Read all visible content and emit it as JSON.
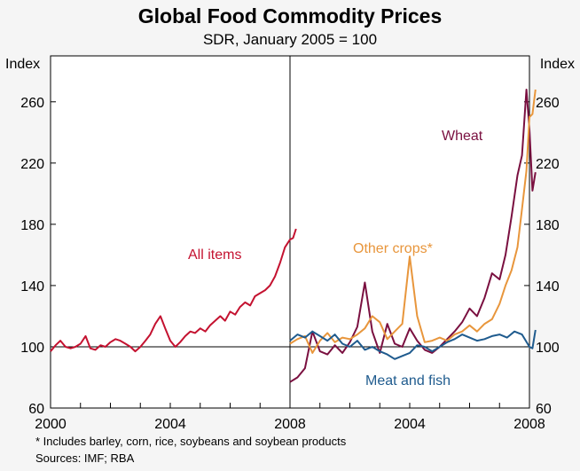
{
  "chart_data": {
    "type": "line",
    "title": "Global Food Commodity Prices",
    "subtitle": "SDR, January 2005 = 100",
    "ylabel_left": "Index",
    "ylabel_right": "Index",
    "ylim": [
      60,
      290
    ],
    "yticks": [
      60,
      100,
      140,
      180,
      220,
      260
    ],
    "reference_line": 100,
    "panels": [
      {
        "name": "left",
        "xlim": [
          2000,
          2008
        ],
        "xticks": [
          2000,
          2004,
          2008
        ],
        "series": [
          {
            "name": "All items",
            "color": "#c41230",
            "x": [
              2000.0,
              2000.17,
              2000.33,
              2000.5,
              2000.67,
              2000.83,
              2001.0,
              2001.17,
              2001.33,
              2001.5,
              2001.67,
              2001.83,
              2002.0,
              2002.17,
              2002.33,
              2002.5,
              2002.67,
              2002.83,
              2003.0,
              2003.17,
              2003.33,
              2003.5,
              2003.67,
              2003.83,
              2004.0,
              2004.17,
              2004.33,
              2004.5,
              2004.67,
              2004.83,
              2005.0,
              2005.17,
              2005.33,
              2005.5,
              2005.67,
              2005.83,
              2006.0,
              2006.17,
              2006.33,
              2006.5,
              2006.67,
              2006.83,
              2007.0,
              2007.17,
              2007.33,
              2007.5,
              2007.67,
              2007.83,
              2008.0,
              2008.1,
              2008.2
            ],
            "values": [
              97,
              101,
              104,
              100,
              99,
              100,
              102,
              107,
              99,
              98,
              101,
              100,
              103,
              105,
              104,
              102,
              100,
              97,
              100,
              104,
              108,
              115,
              120,
              112,
              104,
              100,
              103,
              107,
              110,
              109,
              112,
              110,
              114,
              117,
              120,
              117,
              123,
              121,
              126,
              129,
              127,
              133,
              135,
              137,
              140,
              146,
              155,
              165,
              170,
              171,
              177
            ]
          }
        ]
      },
      {
        "name": "right",
        "xlim": [
          2000,
          2008
        ],
        "xticks": [
          2004,
          2008
        ],
        "series": [
          {
            "name": "Wheat",
            "color": "#7a1040",
            "x": [
              2000.0,
              2000.25,
              2000.5,
              2000.75,
              2001.0,
              2001.25,
              2001.5,
              2001.75,
              2002.0,
              2002.25,
              2002.5,
              2002.75,
              2003.0,
              2003.25,
              2003.5,
              2003.75,
              2004.0,
              2004.25,
              2004.5,
              2004.75,
              2005.0,
              2005.25,
              2005.5,
              2005.75,
              2006.0,
              2006.25,
              2006.5,
              2006.75,
              2007.0,
              2007.2,
              2007.4,
              2007.6,
              2007.75,
              2007.9,
              2008.0,
              2008.1,
              2008.2
            ],
            "values": [
              77,
              80,
              86,
              110,
              97,
              95,
              101,
              96,
              103,
              113,
              142,
              110,
              96,
              115,
              102,
              100,
              112,
              104,
              98,
              96,
              100,
              105,
              110,
              116,
              125,
              120,
              132,
              148,
              144,
              160,
              185,
              212,
              225,
              268,
              242,
              202,
              214
            ]
          },
          {
            "name": "Other crops*",
            "color": "#e8963c",
            "x": [
              2000.0,
              2000.25,
              2000.5,
              2000.75,
              2001.0,
              2001.25,
              2001.5,
              2001.75,
              2002.0,
              2002.25,
              2002.5,
              2002.75,
              2003.0,
              2003.25,
              2003.5,
              2003.75,
              2004.0,
              2004.25,
              2004.5,
              2004.75,
              2005.0,
              2005.25,
              2005.5,
              2005.75,
              2006.0,
              2006.25,
              2006.5,
              2006.75,
              2007.0,
              2007.2,
              2007.4,
              2007.6,
              2007.75,
              2007.9,
              2008.0,
              2008.1,
              2008.2
            ],
            "values": [
              102,
              105,
              107,
              96,
              104,
              109,
              103,
              106,
              105,
              108,
              112,
              120,
              116,
              105,
              110,
              115,
              159,
              120,
              103,
              104,
              106,
              104,
              108,
              110,
              114,
              110,
              115,
              118,
              128,
              140,
              150,
              165,
              190,
              215,
              250,
              252,
              268
            ]
          },
          {
            "name": "Meat and fish",
            "color": "#1f5b8e",
            "x": [
              2000.0,
              2000.25,
              2000.5,
              2000.75,
              2001.0,
              2001.25,
              2001.5,
              2001.75,
              2002.0,
              2002.25,
              2002.5,
              2002.75,
              2003.0,
              2003.25,
              2003.5,
              2003.75,
              2004.0,
              2004.25,
              2004.5,
              2004.75,
              2005.0,
              2005.25,
              2005.5,
              2005.75,
              2006.0,
              2006.25,
              2006.5,
              2006.75,
              2007.0,
              2007.25,
              2007.5,
              2007.75,
              2008.0,
              2008.1,
              2008.2
            ],
            "values": [
              104,
              108,
              106,
              110,
              107,
              104,
              108,
              102,
              100,
              104,
              98,
              100,
              97,
              95,
              92,
              94,
              96,
              101,
              100,
              97,
              100,
              103,
              105,
              108,
              106,
              104,
              105,
              107,
              108,
              106,
              110,
              108,
              100,
              99,
              111
            ]
          }
        ]
      }
    ],
    "labels": {
      "all_items": "All items",
      "wheat": "Wheat",
      "other_crops": "Other crops*",
      "meat_fish": "Meat and fish"
    }
  },
  "footnote": "*    Includes barley, corn, rice, soybeans and soybean products",
  "sources": "Sources: IMF; RBA"
}
